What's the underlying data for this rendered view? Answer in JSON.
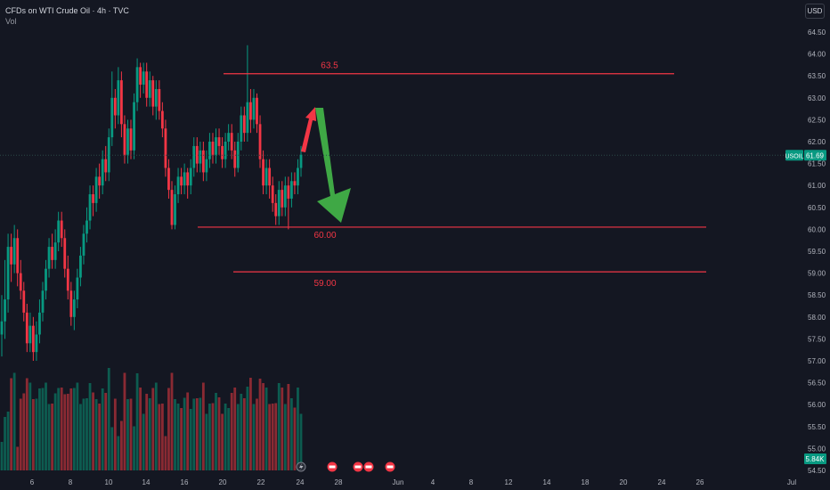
{
  "header": {
    "title": "CFDs on WTI Crude Oil · 4h · TVC",
    "vol_label": "Vol"
  },
  "currency_button": "USD",
  "symbol_tag": {
    "symbol": "USOIL",
    "price": "61.69"
  },
  "volume_tag": "5.84K",
  "colors": {
    "background": "#141722",
    "up": "#089981",
    "down": "#f23645",
    "up_volume": "#0d5c50",
    "down_volume": "#8a2a33",
    "level_line": "#f23645",
    "arrow_up": "#f23645",
    "arrow_down": "#3fa845",
    "tag": "#089981"
  },
  "chart_data": {
    "type": "candlestick",
    "title": "CFDs on WTI Crude Oil · 4h · TVC",
    "y_axis": {
      "ticks": [
        "64.50",
        "64.00",
        "63.50",
        "63.00",
        "62.50",
        "62.00",
        "61.50",
        "61.00",
        "60.50",
        "60.00",
        "59.50",
        "59.00",
        "58.50",
        "58.00",
        "57.50",
        "57.00",
        "56.50",
        "56.00",
        "55.50",
        "55.00",
        "54.50"
      ],
      "range": [
        54.5,
        64.5
      ],
      "current_price": 61.69
    },
    "x_axis": {
      "ticks": [
        "6",
        "8",
        "10",
        "14",
        "16",
        "20",
        "22",
        "24",
        "28",
        "Jun",
        "4",
        "8",
        "12",
        "14",
        "18",
        "20",
        "24",
        "26",
        "Jul"
      ]
    },
    "levels": [
      {
        "label": "63.5",
        "value": 63.55
      },
      {
        "label": "60.00",
        "value": 60.05
      },
      {
        "label": "59.00",
        "value": 59.03
      }
    ],
    "projection": {
      "up_target": 62.8,
      "down_target": 60.1
    },
    "candles": [
      [
        57.6,
        57.9,
        58.5,
        57.1
      ],
      [
        57.9,
        58.4,
        59.3,
        57.5
      ],
      [
        58.4,
        59.6,
        59.9,
        58.1
      ],
      [
        59.6,
        59.2,
        59.9,
        58.8
      ],
      [
        59.2,
        59.8,
        60.1,
        59.0
      ],
      [
        59.8,
        59.0,
        60.0,
        58.7
      ],
      [
        59.0,
        58.6,
        59.3,
        58.4
      ],
      [
        58.6,
        58.1,
        58.8,
        57.9
      ],
      [
        58.1,
        57.4,
        58.3,
        57.2
      ],
      [
        57.4,
        57.8,
        58.1,
        57.2
      ],
      [
        57.8,
        57.2,
        58.0,
        57.0
      ],
      [
        57.2,
        57.6,
        57.9,
        57.0
      ],
      [
        57.6,
        58.1,
        58.4,
        57.4
      ],
      [
        58.1,
        58.6,
        58.8,
        57.9
      ],
      [
        58.6,
        59.1,
        59.3,
        58.4
      ],
      [
        59.1,
        59.6,
        59.8,
        58.9
      ],
      [
        59.6,
        59.3,
        59.9,
        59.1
      ],
      [
        59.3,
        59.7,
        60.0,
        59.1
      ],
      [
        59.7,
        60.2,
        60.4,
        59.5
      ],
      [
        60.2,
        59.8,
        60.4,
        59.6
      ],
      [
        59.8,
        59.1,
        60.0,
        58.9
      ],
      [
        59.1,
        58.6,
        59.4,
        58.4
      ],
      [
        58.6,
        58.0,
        58.8,
        57.8
      ],
      [
        58.0,
        58.4,
        58.6,
        57.7
      ],
      [
        58.4,
        58.9,
        59.1,
        58.2
      ],
      [
        58.9,
        59.4,
        59.6,
        58.7
      ],
      [
        59.4,
        59.9,
        60.1,
        59.2
      ],
      [
        59.9,
        60.2,
        60.5,
        59.7
      ],
      [
        60.2,
        60.8,
        61.0,
        60.0
      ],
      [
        60.8,
        60.6,
        61.0,
        60.3
      ],
      [
        60.6,
        61.2,
        61.4,
        60.4
      ],
      [
        61.2,
        61.0,
        61.5,
        60.7
      ],
      [
        61.0,
        61.6,
        61.8,
        60.8
      ],
      [
        61.6,
        61.3,
        61.9,
        61.1
      ],
      [
        61.3,
        62.1,
        62.3,
        61.1
      ],
      [
        62.1,
        63.0,
        63.6,
        61.9
      ],
      [
        63.0,
        62.6,
        63.2,
        62.3
      ],
      [
        62.6,
        63.4,
        63.7,
        62.4
      ],
      [
        63.4,
        62.4,
        63.6,
        62.1
      ],
      [
        62.4,
        61.7,
        62.6,
        61.5
      ],
      [
        61.7,
        62.3,
        62.5,
        61.5
      ],
      [
        62.3,
        61.8,
        62.5,
        61.6
      ],
      [
        61.8,
        62.9,
        63.1,
        61.6
      ],
      [
        62.9,
        63.7,
        63.9,
        62.7
      ],
      [
        63.7,
        63.3,
        63.8,
        63.0
      ],
      [
        63.3,
        63.6,
        63.8,
        63.1
      ],
      [
        63.6,
        63.0,
        63.8,
        62.8
      ],
      [
        63.0,
        63.4,
        63.6,
        62.8
      ],
      [
        63.4,
        62.8,
        63.5,
        62.6
      ],
      [
        62.8,
        63.2,
        63.4,
        62.5
      ],
      [
        63.2,
        62.7,
        63.4,
        62.5
      ],
      [
        62.7,
        62.3,
        62.9,
        62.1
      ],
      [
        62.3,
        61.4,
        62.5,
        61.2
      ],
      [
        61.4,
        60.9,
        61.6,
        60.7
      ],
      [
        60.9,
        60.1,
        61.1,
        60.0
      ],
      [
        60.1,
        60.8,
        61.0,
        60.0
      ],
      [
        60.8,
        61.2,
        61.4,
        60.6
      ],
      [
        61.2,
        61.0,
        61.4,
        60.8
      ],
      [
        61.0,
        61.3,
        61.5,
        60.8
      ],
      [
        61.3,
        61.0,
        61.4,
        60.7
      ],
      [
        61.0,
        61.4,
        61.6,
        60.8
      ],
      [
        61.4,
        61.9,
        62.1,
        61.2
      ],
      [
        61.9,
        61.5,
        62.1,
        61.3
      ],
      [
        61.5,
        61.8,
        62.0,
        61.3
      ],
      [
        61.8,
        61.3,
        62.0,
        61.1
      ],
      [
        61.3,
        61.6,
        61.8,
        61.1
      ],
      [
        61.6,
        62.0,
        62.2,
        61.4
      ],
      [
        62.0,
        61.7,
        62.2,
        61.5
      ],
      [
        61.7,
        62.1,
        62.3,
        61.5
      ],
      [
        62.1,
        61.9,
        62.3,
        61.7
      ],
      [
        61.9,
        61.6,
        62.1,
        61.4
      ],
      [
        61.6,
        62.0,
        62.2,
        61.4
      ],
      [
        62.0,
        62.2,
        62.4,
        61.8
      ],
      [
        62.2,
        61.8,
        62.4,
        61.6
      ],
      [
        61.8,
        61.4,
        62.0,
        61.2
      ],
      [
        61.4,
        62.0,
        62.2,
        61.3
      ],
      [
        62.0,
        62.6,
        62.8,
        61.8
      ],
      [
        62.6,
        62.2,
        62.8,
        62.0
      ],
      [
        62.2,
        62.9,
        64.2,
        62.0
      ],
      [
        62.9,
        62.5,
        63.2,
        62.2
      ],
      [
        62.5,
        63.0,
        63.2,
        62.3
      ],
      [
        63.0,
        62.4,
        63.1,
        62.2
      ],
      [
        62.4,
        61.6,
        62.6,
        61.4
      ],
      [
        61.6,
        61.0,
        61.8,
        60.8
      ],
      [
        61.0,
        61.4,
        61.6,
        60.8
      ],
      [
        61.4,
        61.0,
        61.6,
        60.7
      ],
      [
        61.0,
        60.6,
        61.2,
        60.4
      ],
      [
        60.6,
        60.3,
        60.8,
        60.1
      ],
      [
        60.3,
        60.9,
        61.1,
        60.1
      ],
      [
        60.9,
        60.5,
        61.1,
        60.3
      ],
      [
        60.5,
        61.0,
        61.2,
        60.3
      ],
      [
        61.0,
        60.7,
        61.2,
        60.0
      ],
      [
        60.7,
        61.1,
        61.3,
        60.5
      ],
      [
        61.1,
        61.0,
        61.3,
        60.8
      ],
      [
        61.0,
        61.4,
        61.6,
        60.8
      ],
      [
        61.4,
        61.7,
        61.9,
        61.2
      ]
    ]
  }
}
